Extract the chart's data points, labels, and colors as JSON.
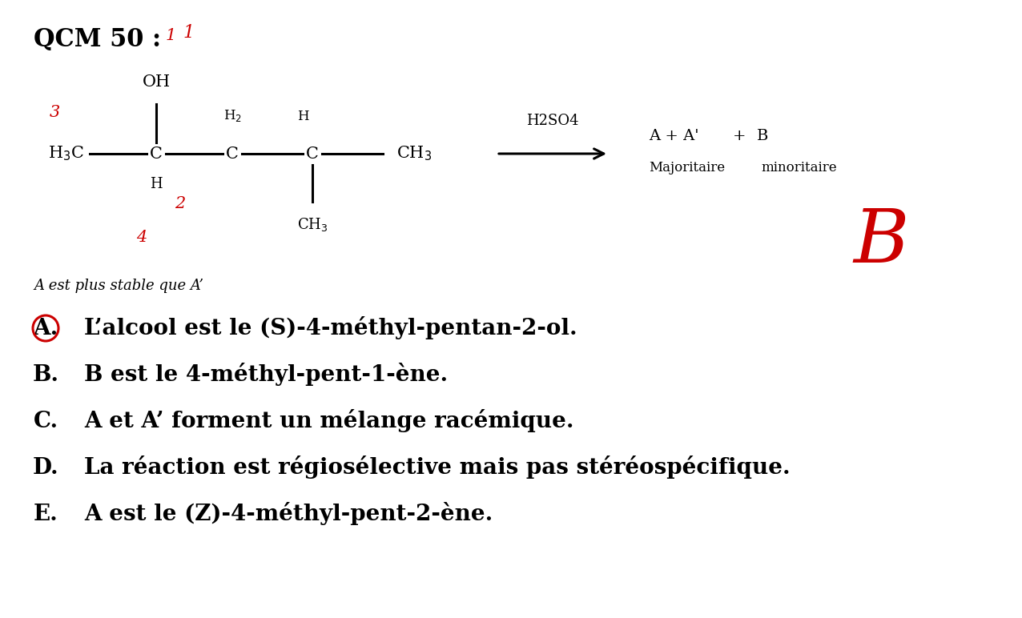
{
  "title": "QCM 50 :",
  "background_color": "#ffffff",
  "red_color": "#cc0000",
  "answers": [
    {
      "label": "A.",
      "text": "L’alcool est le (S)-4-méthyl-pentan-2-ol.",
      "circled": true
    },
    {
      "label": "B.",
      "text": "B est le 4-méthyl-pent-1-ène.",
      "circled": false
    },
    {
      "label": "C.",
      "text": "A et A’ forment un mélange racémique.",
      "circled": false
    },
    {
      "label": "D.",
      "text": "La réaction est régiosélective mais pas stéréospécifique.",
      "circled": false
    },
    {
      "label": "E.",
      "text": "A est le (Z)-4-méthyl-pent-2-ène.",
      "circled": false
    }
  ],
  "note": "A est plus stable que A’",
  "h2so4_label": "H2SO4",
  "red_b_annotation": "B",
  "red_numbers": [
    "1",
    "2",
    "3",
    "4"
  ],
  "title_fontsize": 22,
  "answer_fontsize": 20,
  "note_fontsize": 13,
  "struct_fontsize": 15
}
